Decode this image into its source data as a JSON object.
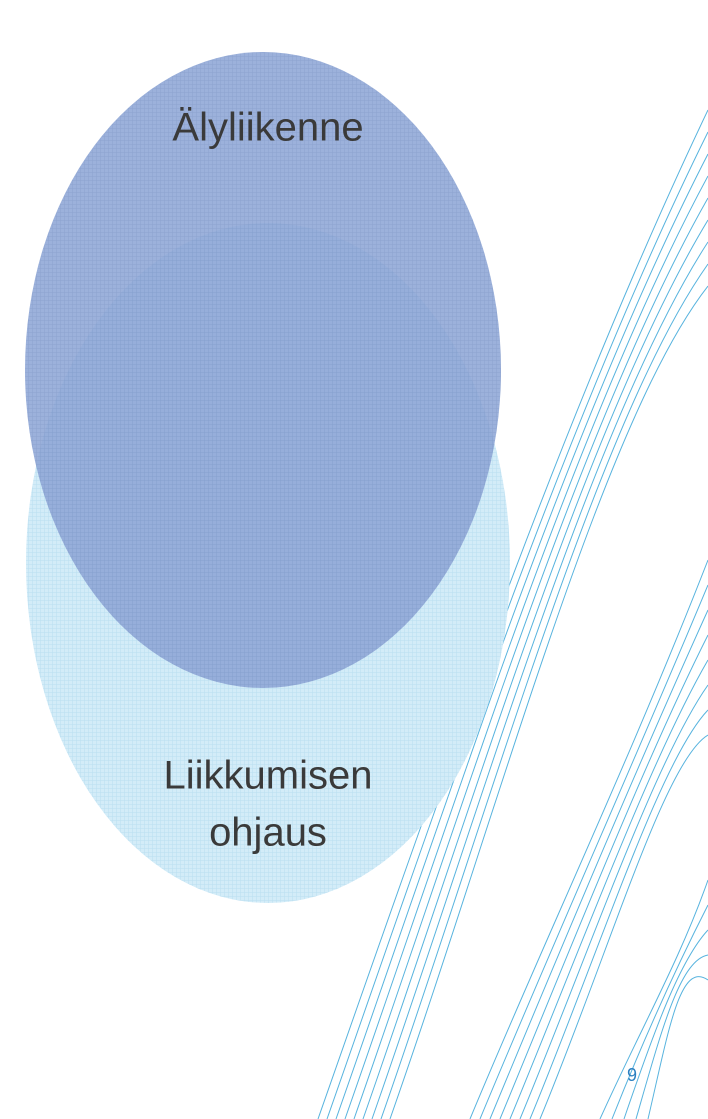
{
  "nodes": [
    {
      "label": [
        "Älyliikenne"
      ]
    },
    {
      "label": [
        "Liikkumisen",
        "ohjaus"
      ]
    }
  ],
  "page_number": "9"
}
